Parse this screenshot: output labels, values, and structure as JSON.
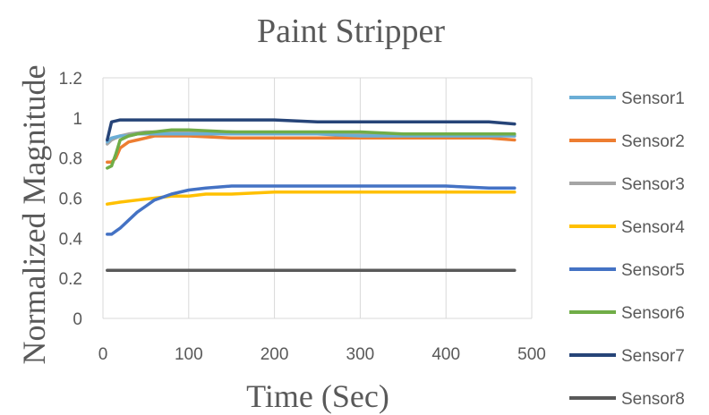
{
  "chart_data": {
    "type": "line",
    "title": "Paint Stripper",
    "xlabel": "Time (Sec)",
    "ylabel": "Normalized Magnitude",
    "xlim": [
      0,
      500
    ],
    "ylim": [
      0,
      1.2
    ],
    "xticks": [
      "0",
      "100",
      "200",
      "300",
      "400",
      "500"
    ],
    "yticks": [
      "0",
      "0.2",
      "0.4",
      "0.6",
      "0.8",
      "1",
      "1.2"
    ],
    "grid": "vertical",
    "legend_position": "right",
    "series": [
      {
        "name": "Sensor1",
        "color": "#6baed6",
        "x": [
          5,
          10,
          20,
          30,
          40,
          60,
          80,
          100,
          150,
          200,
          250,
          300,
          350,
          400,
          450,
          480
        ],
        "values": [
          0.88,
          0.9,
          0.91,
          0.91,
          0.92,
          0.92,
          0.92,
          0.92,
          0.92,
          0.92,
          0.92,
          0.91,
          0.91,
          0.91,
          0.91,
          0.91
        ]
      },
      {
        "name": "Sensor2",
        "color": "#ed7d31",
        "x": [
          5,
          10,
          15,
          20,
          30,
          40,
          50,
          60,
          80,
          100,
          150,
          200,
          250,
          300,
          350,
          400,
          450,
          480
        ],
        "values": [
          0.78,
          0.78,
          0.8,
          0.85,
          0.88,
          0.89,
          0.9,
          0.91,
          0.91,
          0.91,
          0.9,
          0.9,
          0.9,
          0.9,
          0.9,
          0.9,
          0.9,
          0.89
        ]
      },
      {
        "name": "Sensor3",
        "color": "#a5a5a5",
        "x": [
          5,
          10,
          20,
          30,
          50,
          80,
          100,
          150,
          200,
          250,
          300,
          350,
          400,
          450,
          480
        ],
        "values": [
          0.87,
          0.89,
          0.91,
          0.92,
          0.93,
          0.93,
          0.93,
          0.93,
          0.92,
          0.92,
          0.92,
          0.92,
          0.92,
          0.92,
          0.91
        ]
      },
      {
        "name": "Sensor4",
        "color": "#ffc000",
        "x": [
          5,
          20,
          40,
          60,
          80,
          100,
          120,
          150,
          200,
          250,
          300,
          350,
          400,
          450,
          480
        ],
        "values": [
          0.57,
          0.58,
          0.59,
          0.6,
          0.61,
          0.61,
          0.62,
          0.62,
          0.63,
          0.63,
          0.63,
          0.63,
          0.63,
          0.63,
          0.63
        ]
      },
      {
        "name": "Sensor5",
        "color": "#4472c4",
        "x": [
          5,
          10,
          20,
          30,
          40,
          50,
          60,
          80,
          100,
          120,
          150,
          200,
          250,
          300,
          350,
          400,
          450,
          480
        ],
        "values": [
          0.42,
          0.42,
          0.45,
          0.49,
          0.53,
          0.56,
          0.59,
          0.62,
          0.64,
          0.65,
          0.66,
          0.66,
          0.66,
          0.66,
          0.66,
          0.66,
          0.65,
          0.65
        ]
      },
      {
        "name": "Sensor6",
        "color": "#70ad47",
        "x": [
          5,
          10,
          15,
          20,
          30,
          40,
          60,
          80,
          100,
          150,
          200,
          250,
          300,
          350,
          400,
          450,
          480
        ],
        "values": [
          0.75,
          0.76,
          0.82,
          0.89,
          0.91,
          0.92,
          0.93,
          0.94,
          0.94,
          0.93,
          0.93,
          0.93,
          0.93,
          0.92,
          0.92,
          0.92,
          0.92
        ]
      },
      {
        "name": "Sensor7",
        "color": "#264478",
        "x": [
          5,
          10,
          20,
          30,
          50,
          80,
          100,
          150,
          200,
          250,
          300,
          350,
          400,
          450,
          480
        ],
        "values": [
          0.89,
          0.98,
          0.99,
          0.99,
          0.99,
          0.99,
          0.99,
          0.99,
          0.99,
          0.98,
          0.98,
          0.98,
          0.98,
          0.98,
          0.97
        ]
      },
      {
        "name": "Sensor8",
        "color": "#595959",
        "x": [
          5,
          50,
          100,
          150,
          200,
          250,
          300,
          350,
          400,
          450,
          480
        ],
        "values": [
          0.24,
          0.24,
          0.24,
          0.24,
          0.24,
          0.24,
          0.24,
          0.24,
          0.24,
          0.24,
          0.24
        ]
      }
    ]
  }
}
